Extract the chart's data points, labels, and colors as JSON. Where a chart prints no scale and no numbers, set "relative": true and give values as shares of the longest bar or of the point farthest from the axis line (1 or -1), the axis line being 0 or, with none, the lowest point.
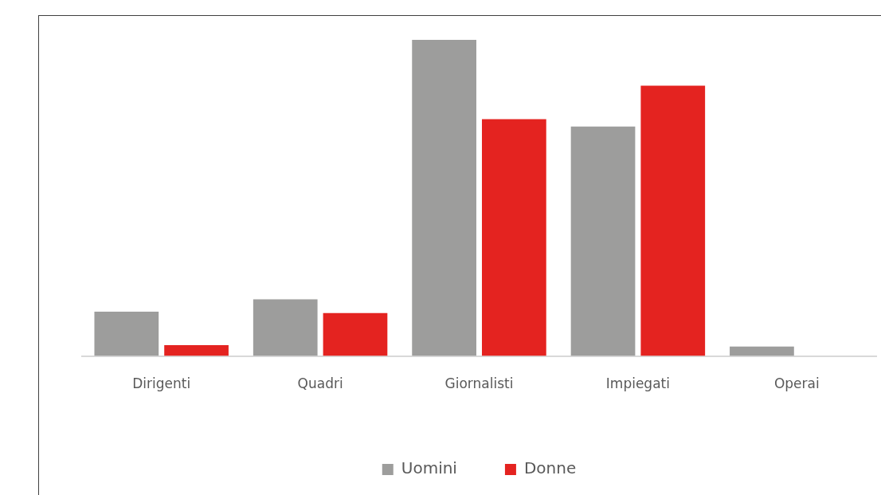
{
  "chart_data": {
    "type": "bar",
    "relative": true,
    "categories": [
      "Dirigenti",
      "Quadri",
      "Giornalisti",
      "Impiegati",
      "Operai"
    ],
    "series": [
      {
        "name": "Uomini",
        "color": "#9d9d9c",
        "values": [
          0.14,
          0.179,
          1,
          0.726,
          0.03
        ]
      },
      {
        "name": "Donne",
        "color": "#e42320",
        "values": [
          0.034,
          0.136,
          0.749,
          0.855,
          0
        ]
      }
    ],
    "legend": "bottom",
    "grid": false
  }
}
